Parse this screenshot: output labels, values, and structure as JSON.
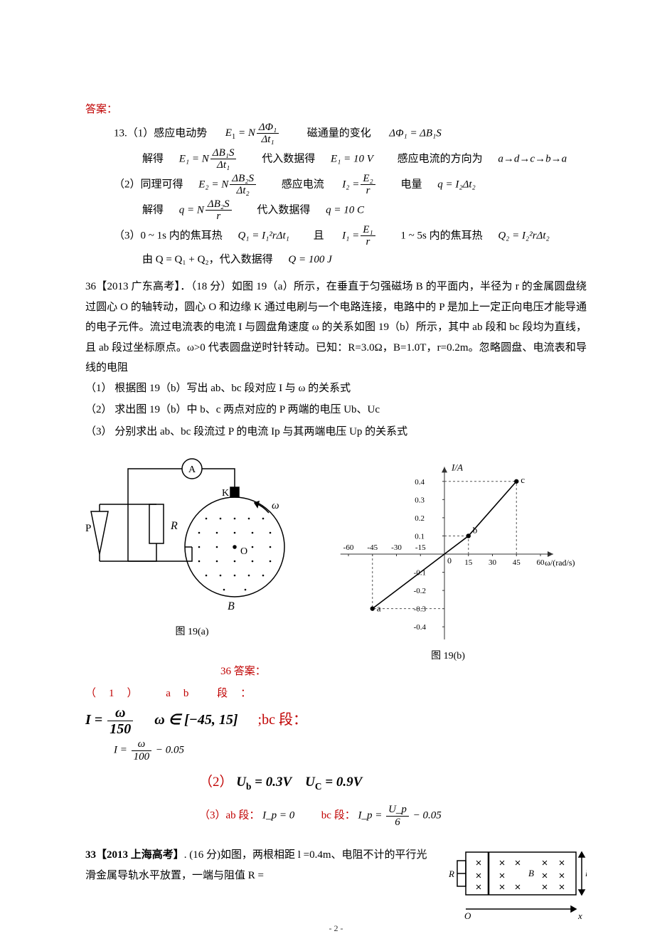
{
  "answer_label": "答案：",
  "p13": {
    "num": "13.",
    "l1_a": "（1）感应电动势",
    "l1_b_eq": "E",
    "l1_b_sub": "1",
    "l1_b_eq2": " = N",
    "l1_frac_num": "ΔΦ₁",
    "l1_frac_den": "Δt₁",
    "l1_c": "磁通量的变化",
    "l1_d": "ΔΦ₁ = ΔB₁S",
    "l2_a": "解得",
    "l2_eq": "E₁ = N",
    "l2_frac_num": "ΔB₁S",
    "l2_frac_den": "Δt₁",
    "l2_b": "代入数据得",
    "l2_c": "E₁ = 10 V",
    "l2_d": "感应电流的方向为",
    "l2_e": "a→d→c→b→a",
    "l3_a": "（2）同理可得",
    "l3_eq": "E₂ = N",
    "l3_frac_num": "ΔB₂S",
    "l3_frac_den": "Δt₂",
    "l3_b": "感应电流",
    "l3_c_num": "E₂",
    "l3_c_den": "r",
    "l3_c_pre": "I₂ =",
    "l3_d": "电量",
    "l3_e": "q = I₂Δt₂",
    "l4_a": "解得",
    "l4_eq": "q = N",
    "l4_frac_num": "ΔB₂S",
    "l4_frac_den": "r",
    "l4_b": "代入数据得",
    "l4_c": "q = 10 C",
    "l5_a": "（3）0 ~ 1s 内的焦耳热",
    "l5_eq": "Q₁ = I₁²rΔt₁",
    "l5_b": "且",
    "l5_c_pre": "I₁ =",
    "l5_c_num": "E₁",
    "l5_c_den": "r",
    "l5_d": "1 ~ 5s 内的焦耳热",
    "l5_e": "Q₂ = I₂²rΔt₂",
    "l6_a": "由 Q = Q₁ + Q₂，代入数据得",
    "l6_b": "Q = 100 J"
  },
  "p36": {
    "header": "36【2013 广东高考】．（18 分）如图 19（a）所示，在垂直于匀强磁场 B 的平面内，半径为 r 的金属圆盘绕过圆心 O 的轴转动，圆心 O 和边缘 K 通过电刷与一个电路连接，电路中的 P 是加上一定正向电压才能导通的电子元件。流过电流表的电流 I 与圆盘角速度 ω 的关系如图 19（b）所示，其中 ab 段和 bc 段均为直线，且 ab 段过坐标原点。ω>0 代表圆盘逆时针转动。已知：R=3.0Ω，B=1.0T，r=0.2m。忽略圆盘、电流表和导线的电阻",
    "q1": "（1）  根据图 19（b）写出 ab、bc 段对应 I 与 ω 的关系式",
    "q2": "（2）  求出图 19（b）中 b、c 两点对应的 P 两端的电压 Ub、Uc",
    "q3": "（3）  分别求出 ab、bc 段流过 P 的电流 Ip 与其两端电压 Up 的关系式",
    "fig_a_caption": "图 19(a)",
    "fig_b_caption": "图 19(b)",
    "ans_label": "36 答案：",
    "a1_head": "（1） ab 段：",
    "a1_eq1_pre": "I =",
    "a1_eq1_num": "ω",
    "a1_eq1_den": "150",
    "a1_range": "ω ∈ [−45, 15]",
    "a1_bc": ";bc 段：",
    "a1_eq2_pre": "I =",
    "a1_eq2_num": "ω",
    "a1_eq2_den": "100",
    "a1_eq2_tail": " − 0.05",
    "a2": "（2）U_b = 0.3V   U_C = 0.9V",
    "a3_a": "（3）ab 段：",
    "a3_b": "I_p = 0",
    "a3_c": "bc 段：",
    "a3_d_pre": "I_p =",
    "a3_d_num": "U_p",
    "a3_d_den": "6",
    "a3_d_tail": " − 0.05"
  },
  "p33": {
    "header_a": "33【2013 上海高考】",
    "header_b": ". (16 分)如图，两根相距 l =0.4m、电阻不计的平行光滑金属导轨水平放置，一端与阻值 R ="
  },
  "circuit": {
    "labels": {
      "P": "P",
      "R": "R",
      "A": "A",
      "K": "K",
      "O": "O",
      "B": "B",
      "omega": "ω"
    },
    "stroke": "#000000",
    "bg": "#ffffff"
  },
  "graph": {
    "stroke": "#333333",
    "y_label": "I/A",
    "x_label": "ω/(rad/s)",
    "y_ticks": [
      -0.4,
      -0.3,
      -0.2,
      -0.1,
      0.1,
      0.2,
      0.3,
      0.4
    ],
    "x_ticks_neg": [
      -60,
      -45,
      -30,
      -15
    ],
    "x_ticks_pos": [
      15,
      30,
      45,
      60
    ],
    "origin_label": "0",
    "points": {
      "a_label": "a",
      "b_label": "b",
      "c_label": "c"
    },
    "xmin": -60,
    "xmax": 60,
    "ymin": -0.45,
    "ymax": 0.45,
    "a": [
      -45,
      -0.3
    ],
    "b": [
      15,
      0.1
    ],
    "c": [
      45,
      0.4
    ]
  },
  "rail_diagram": {
    "labels": {
      "R": "R",
      "B": "B",
      "l": "l",
      "O": "O",
      "x": "x"
    },
    "stroke": "#000000"
  },
  "page_number": "- 2 -"
}
